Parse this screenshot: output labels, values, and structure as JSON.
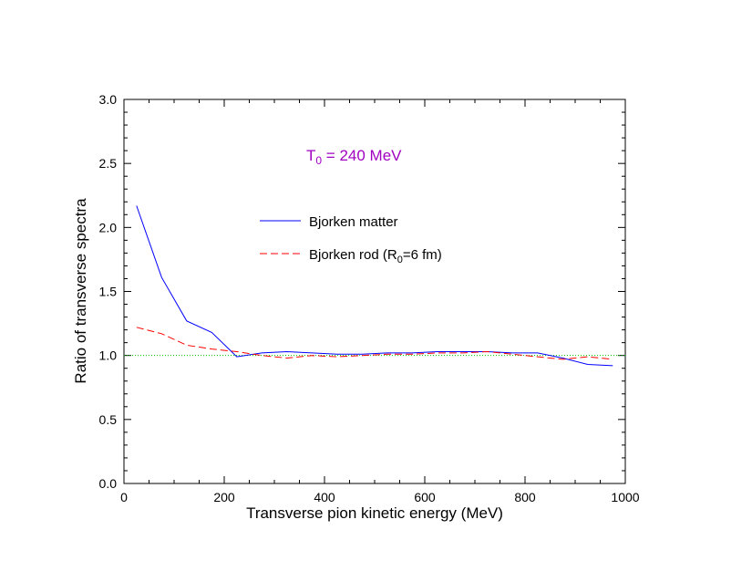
{
  "chart_data": {
    "type": "line",
    "title": "",
    "xlabel": "Transverse pion kinetic energy (MeV)",
    "ylabel": "Ratio of transverse spectra",
    "xlim": [
      0,
      1000
    ],
    "ylim": [
      0.0,
      3.0
    ],
    "x_ticks": [
      "0",
      "200",
      "400",
      "600",
      "800",
      "1000"
    ],
    "y_ticks": [
      "0.0",
      "0.5",
      "1.0",
      "1.5",
      "2.0",
      "2.5",
      "3.0"
    ],
    "annotation": {
      "main": "T",
      "sub": "0",
      "rest": " = 240 MeV",
      "color": "#a000c0"
    },
    "legend": {
      "position": "upper-center",
      "entries": [
        {
          "label": "Bjorken matter",
          "series": 0
        },
        {
          "label_parts": [
            "Bjorken rod (R",
            "0",
            "=6 fm)"
          ],
          "series": 1
        }
      ]
    },
    "reference_line": {
      "y": 1.0,
      "color": "#00cc00",
      "style": "dotted"
    },
    "series": [
      {
        "color": "#0000ff",
        "style": "solid",
        "x": [
          25,
          75,
          125,
          175,
          225,
          275,
          325,
          375,
          425,
          475,
          525,
          575,
          625,
          675,
          725,
          775,
          825,
          875,
          925,
          975
        ],
        "y": [
          2.17,
          1.61,
          1.27,
          1.18,
          0.99,
          1.02,
          1.03,
          1.02,
          1.01,
          1.01,
          1.02,
          1.02,
          1.03,
          1.03,
          1.03,
          1.02,
          1.02,
          0.98,
          0.93,
          0.92
        ]
      },
      {
        "color": "#ff0000",
        "style": "dashed",
        "x": [
          25,
          75,
          125,
          175,
          225,
          275,
          325,
          375,
          425,
          475,
          525,
          575,
          625,
          675,
          725,
          775,
          825,
          875,
          925,
          975
        ],
        "y": [
          1.22,
          1.17,
          1.08,
          1.05,
          1.03,
          1.0,
          0.98,
          1.0,
          0.99,
          1.0,
          1.01,
          1.01,
          1.02,
          1.02,
          1.03,
          1.01,
          0.99,
          0.97,
          0.99,
          0.97
        ]
      }
    ]
  }
}
